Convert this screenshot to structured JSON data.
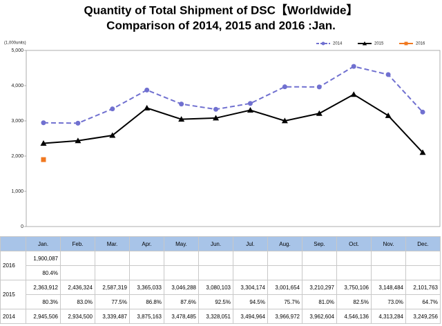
{
  "chart_data": {
    "type": "line",
    "title": "Quantity of Total Shipment of DSC【Worldwide】",
    "subtitle": "Comparison of 2014, 2015 and 2016 :Jan.",
    "y_label": "(1,000units)",
    "categories": [
      "Jan.",
      "Feb.",
      "Mar.",
      "Apr.",
      "May.",
      "Jun.",
      "Jul.",
      "Aug.",
      "Sep.",
      "Oct.",
      "Nov.",
      "Dec."
    ],
    "series": [
      {
        "name": "2014",
        "color": "#7070d0",
        "dashed": true,
        "marker": "circle",
        "values": [
          2945.506,
          2934.5,
          3339.487,
          3875.163,
          3478.485,
          3328.051,
          3494.964,
          3966.972,
          3962.604,
          4546.136,
          4313.284,
          3249.256
        ]
      },
      {
        "name": "2015",
        "color": "#000000",
        "dashed": false,
        "marker": "triangle",
        "values": [
          2363.912,
          2436.324,
          2587.319,
          3365.033,
          3046.288,
          3080.103,
          3304.174,
          3001.654,
          3210.297,
          3750.106,
          3148.484,
          2101.763
        ]
      },
      {
        "name": "2016",
        "color": "#f07820",
        "dashed": false,
        "marker": "square",
        "values": [
          1900.087,
          null,
          null,
          null,
          null,
          null,
          null,
          null,
          null,
          null,
          null,
          null
        ]
      }
    ],
    "ylim": [
      0,
      5000
    ],
    "yticks": [
      0,
      {
        "value": 1000,
        "label": "1,000"
      },
      {
        "value": 2000,
        "label": "2,000"
      },
      {
        "value": 3000,
        "label": "3,000"
      },
      {
        "value": 4000,
        "label": "4,000"
      },
      {
        "value": 5000,
        "label": "5,000"
      }
    ],
    "grid": false,
    "legend": "top-right"
  },
  "table": {
    "groups": [
      {
        "label": "2016",
        "rows": [
          [
            "1,900,087",
            null,
            null,
            null,
            null,
            null,
            null,
            null,
            null,
            null,
            null,
            null
          ],
          [
            "80.4%",
            null,
            null,
            null,
            null,
            null,
            null,
            null,
            null,
            null,
            null,
            null
          ]
        ]
      },
      {
        "label": "2015",
        "rows": [
          [
            "2,363,912",
            "2,436,324",
            "2,587,319",
            "3,365,033",
            "3,046,288",
            "3,080,103",
            "3,304,174",
            "3,001,654",
            "3,210,297",
            "3,750,106",
            "3,148,484",
            "2,101,763"
          ],
          [
            "80.3%",
            "83.0%",
            "77.5%",
            "86.8%",
            "87.6%",
            "92.5%",
            "94.5%",
            "75.7%",
            "81.0%",
            "82.5%",
            "73.0%",
            "64.7%"
          ]
        ]
      },
      {
        "label": "2014",
        "rows": [
          [
            "2,945,506",
            "2,934,500",
            "3,339,487",
            "3,875,163",
            "3,478,485",
            "3,328,051",
            "3,494,964",
            "3,966,972",
            "3,962,604",
            "4,546,136",
            "4,313,284",
            "3,249,256"
          ]
        ]
      }
    ]
  }
}
